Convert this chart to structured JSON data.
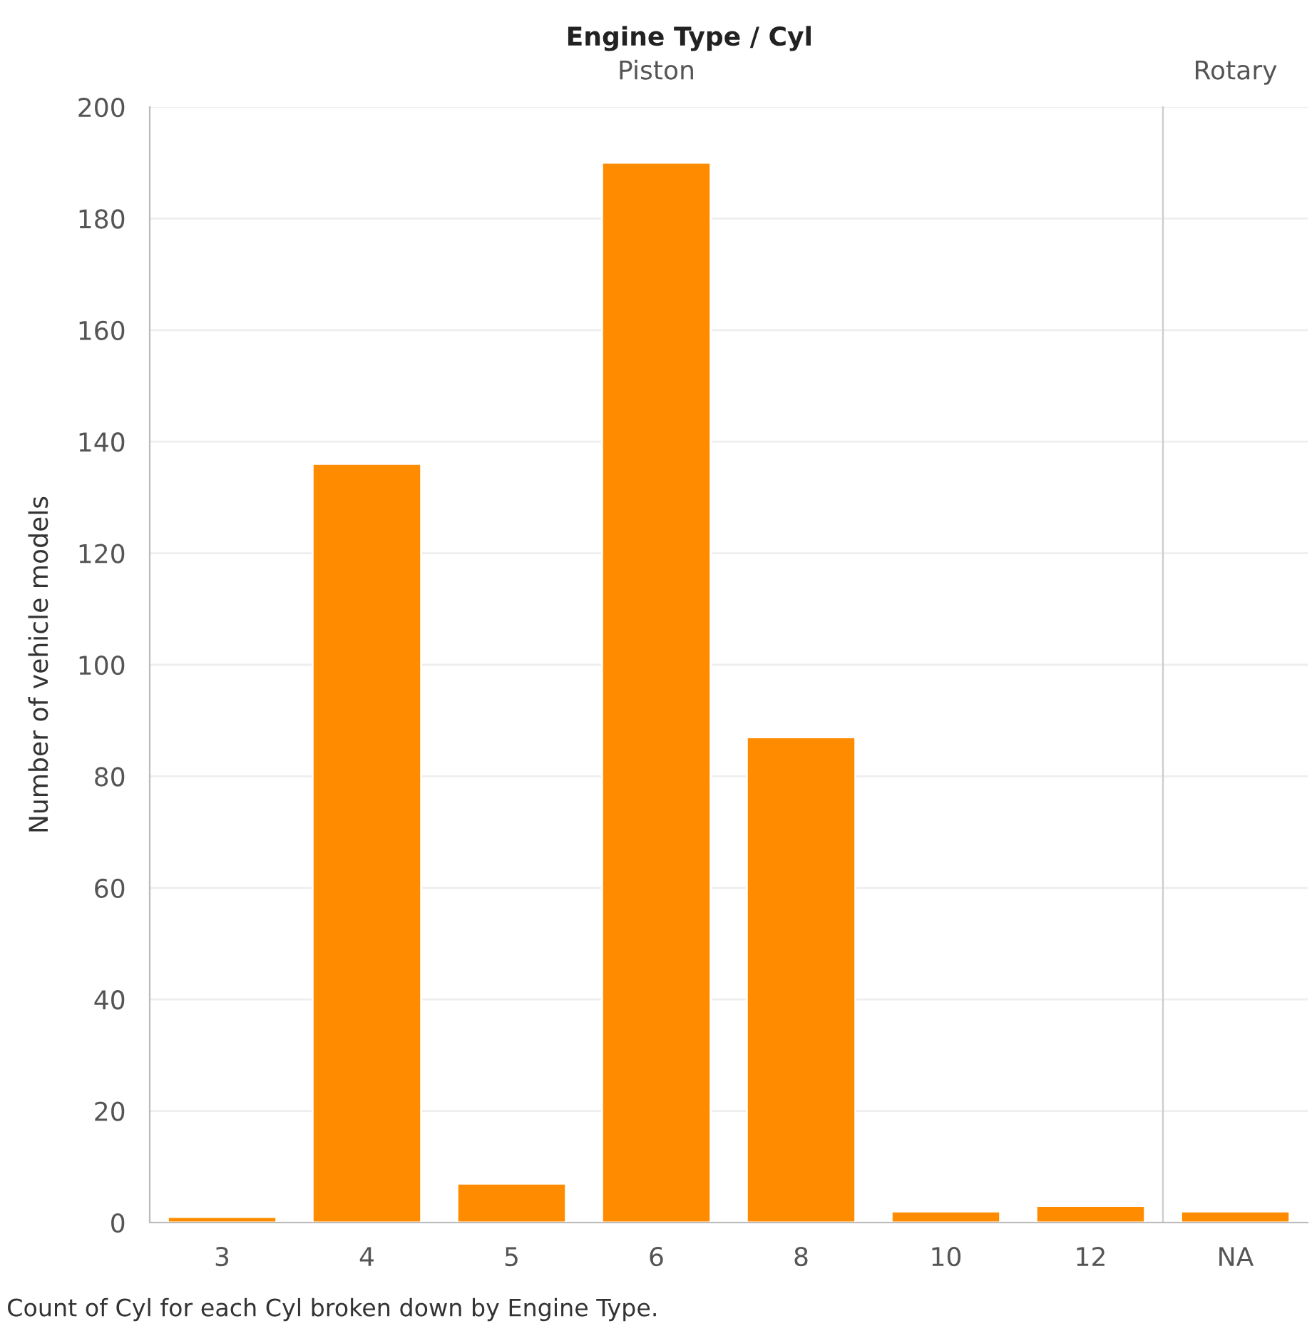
{
  "chart_data": [
    {
      "type": "bar",
      "title": "Engine Type / Cyl",
      "subtitle": "Piston",
      "ylabel": "Number of vehicle models",
      "categories": [
        "3",
        "4",
        "5",
        "6",
        "8",
        "10",
        "12"
      ],
      "values": [
        1,
        136,
        7,
        190,
        87,
        2,
        3
      ],
      "color": "#ff8c00",
      "ylim": [
        0,
        200
      ],
      "yticks": [
        0,
        20,
        40,
        60,
        80,
        100,
        120,
        140,
        160,
        180,
        200
      ],
      "grid": "y",
      "annotations": [
        "Count of Cyl for each Cyl broken down by Engine Type."
      ]
    },
    {
      "type": "bar",
      "subtitle": "Rotary",
      "categories": [
        "NA"
      ],
      "values": [
        2
      ],
      "color": "#ff8c00",
      "ylim": [
        0,
        200
      ],
      "yticks": [
        0,
        20,
        40,
        60,
        80,
        100,
        120,
        140,
        160,
        180,
        200
      ],
      "grid": "y",
      "tick_labels": "x"
    }
  ]
}
